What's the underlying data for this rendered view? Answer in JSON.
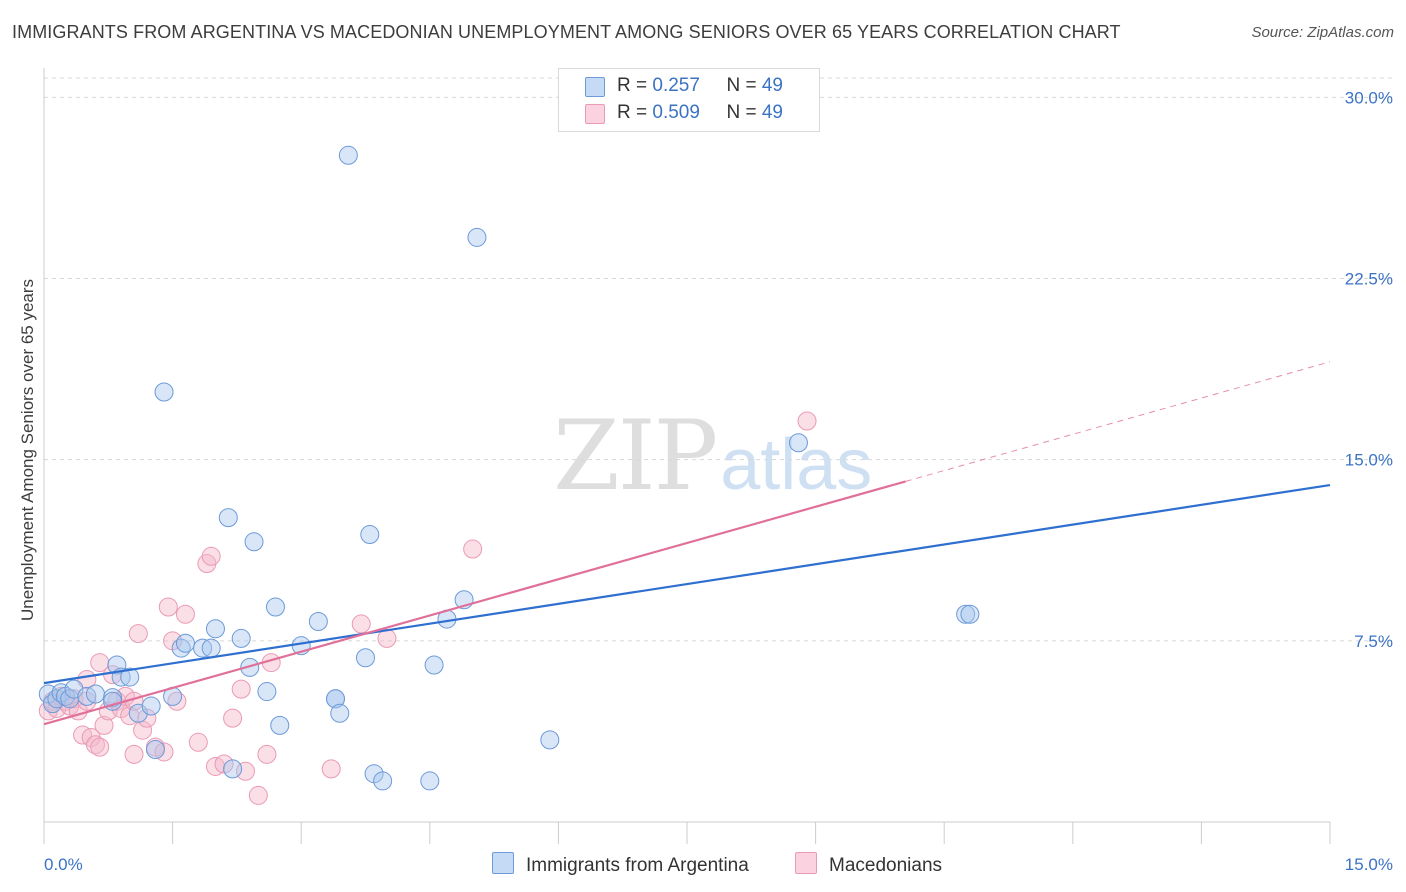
{
  "header": {
    "title": "IMMIGRANTS FROM ARGENTINA VS MACEDONIAN UNEMPLOYMENT AMONG SENIORS OVER 65 YEARS CORRELATION CHART",
    "source": "Source: ZipAtlas.com"
  },
  "watermark": {
    "zip": "ZIP",
    "atlas": "atlas"
  },
  "legend": {
    "rows": [
      {
        "r_label": "R = ",
        "r_value": "0.257",
        "n_label": "N = ",
        "n_value": "49"
      },
      {
        "r_label": "R = ",
        "r_value": "0.509",
        "n_label": "N = ",
        "n_value": "49"
      }
    ],
    "bottom": [
      "Immigrants from Argentina",
      "Macedonians"
    ]
  },
  "colors": {
    "blue": "#3b73c4",
    "blue_fill": "#a9c7ee",
    "blue_line": "#2f6fd0",
    "pink_fill": "#f4b7ca",
    "pink_line": "#e0709a",
    "grid": "#d8d8d8"
  },
  "chart_data": {
    "type": "scatter",
    "title": "IMMIGRANTS FROM ARGENTINA VS MACEDONIAN UNEMPLOYMENT AMONG SENIORS OVER 65 YEARS CORRELATION CHART",
    "xlabel": "",
    "ylabel": "Unemployment Among Seniors over 65 years",
    "xlim": [
      0,
      15
    ],
    "ylim": [
      0,
      30.8
    ],
    "x_ticks": [
      {
        "value": 0,
        "label": "0.0%"
      },
      {
        "value": 15,
        "label": "15.0%"
      }
    ],
    "x_minor_ticks": [
      0,
      1.5,
      3,
      4.5,
      6,
      7.5,
      9,
      10.5,
      12,
      13.5,
      15
    ],
    "y_ticks": [
      {
        "value": 7.5,
        "label": "7.5%"
      },
      {
        "value": 15.0,
        "label": "15.0%"
      },
      {
        "value": 22.5,
        "label": "22.5%"
      },
      {
        "value": 30.0,
        "label": "30.0%"
      }
    ],
    "grid": true,
    "legend_position": "top-center",
    "series": [
      {
        "name": "Immigrants from Argentina",
        "color": "#a9c7ee",
        "r": 0.257,
        "n": 49,
        "trend": {
          "x": [
            0,
            15
          ],
          "y": [
            5.75,
            13.95
          ],
          "dashed_extension": false
        },
        "points": [
          [
            0.05,
            5.3
          ],
          [
            0.1,
            4.9
          ],
          [
            0.15,
            5.1
          ],
          [
            0.2,
            5.35
          ],
          [
            0.25,
            5.2
          ],
          [
            0.3,
            5.1
          ],
          [
            0.35,
            5.5
          ],
          [
            0.5,
            5.2
          ],
          [
            0.6,
            5.3
          ],
          [
            0.8,
            5.15
          ],
          [
            0.8,
            5.0
          ],
          [
            0.85,
            6.5
          ],
          [
            0.9,
            6.0
          ],
          [
            1.0,
            6.0
          ],
          [
            1.1,
            4.5
          ],
          [
            1.25,
            4.8
          ],
          [
            1.3,
            3.0
          ],
          [
            1.4,
            17.8
          ],
          [
            1.5,
            5.2
          ],
          [
            1.6,
            7.2
          ],
          [
            1.65,
            7.4
          ],
          [
            1.85,
            7.2
          ],
          [
            1.95,
            7.2
          ],
          [
            2.0,
            8.0
          ],
          [
            2.15,
            12.6
          ],
          [
            2.2,
            2.2
          ],
          [
            2.3,
            7.6
          ],
          [
            2.4,
            6.4
          ],
          [
            2.45,
            11.6
          ],
          [
            2.6,
            5.4
          ],
          [
            2.7,
            8.9
          ],
          [
            2.75,
            4.0
          ],
          [
            3.0,
            7.3
          ],
          [
            3.2,
            8.3
          ],
          [
            3.4,
            5.1
          ],
          [
            3.4,
            5.1
          ],
          [
            3.45,
            4.5
          ],
          [
            3.55,
            27.6
          ],
          [
            3.75,
            6.8
          ],
          [
            3.8,
            11.9
          ],
          [
            3.85,
            2.0
          ],
          [
            3.95,
            1.7
          ],
          [
            4.5,
            1.7
          ],
          [
            4.55,
            6.5
          ],
          [
            4.7,
            8.4
          ],
          [
            4.9,
            9.2
          ],
          [
            5.05,
            24.2
          ],
          [
            5.9,
            3.4
          ],
          [
            8.8,
            15.7
          ]
        ],
        "extra_points": [
          [
            10.75,
            8.6
          ],
          [
            10.8,
            8.6
          ]
        ]
      },
      {
        "name": "Macedonians",
        "color": "#f4b7ca",
        "r": 0.509,
        "n": 49,
        "trend": {
          "x": [
            0,
            10.05
          ],
          "y": [
            4.05,
            14.1
          ],
          "dashed_extension": {
            "x": [
              10.05,
              15
            ],
            "y": [
              14.1,
              19.05
            ]
          }
        },
        "points": [
          [
            0.05,
            4.6
          ],
          [
            0.1,
            5.0
          ],
          [
            0.15,
            4.7
          ],
          [
            0.2,
            5.2
          ],
          [
            0.25,
            5.0
          ],
          [
            0.3,
            4.8
          ],
          [
            0.35,
            5.1
          ],
          [
            0.4,
            4.6
          ],
          [
            0.45,
            3.6
          ],
          [
            0.5,
            5.9
          ],
          [
            0.5,
            5.0
          ],
          [
            0.55,
            3.5
          ],
          [
            0.6,
            3.2
          ],
          [
            0.65,
            3.1
          ],
          [
            0.65,
            6.6
          ],
          [
            0.7,
            4.0
          ],
          [
            0.75,
            4.6
          ],
          [
            0.8,
            6.1
          ],
          [
            0.85,
            5.0
          ],
          [
            0.9,
            4.7
          ],
          [
            0.95,
            5.2
          ],
          [
            1.0,
            4.4
          ],
          [
            1.05,
            2.8
          ],
          [
            1.05,
            5.0
          ],
          [
            1.1,
            7.8
          ],
          [
            1.15,
            3.8
          ],
          [
            1.2,
            4.3
          ],
          [
            1.3,
            3.1
          ],
          [
            1.4,
            2.9
          ],
          [
            1.45,
            8.9
          ],
          [
            1.5,
            7.5
          ],
          [
            1.55,
            5.0
          ],
          [
            1.65,
            8.6
          ],
          [
            1.8,
            3.3
          ],
          [
            1.9,
            10.7
          ],
          [
            1.95,
            11.0
          ],
          [
            2.0,
            2.3
          ],
          [
            2.1,
            2.4
          ],
          [
            2.2,
            4.3
          ],
          [
            2.3,
            5.5
          ],
          [
            2.35,
            2.1
          ],
          [
            2.5,
            1.1
          ],
          [
            2.6,
            2.8
          ],
          [
            2.65,
            6.6
          ],
          [
            3.35,
            2.2
          ],
          [
            3.7,
            8.2
          ],
          [
            4.0,
            7.6
          ],
          [
            5.0,
            11.3
          ],
          [
            8.9,
            16.6
          ]
        ]
      }
    ]
  }
}
